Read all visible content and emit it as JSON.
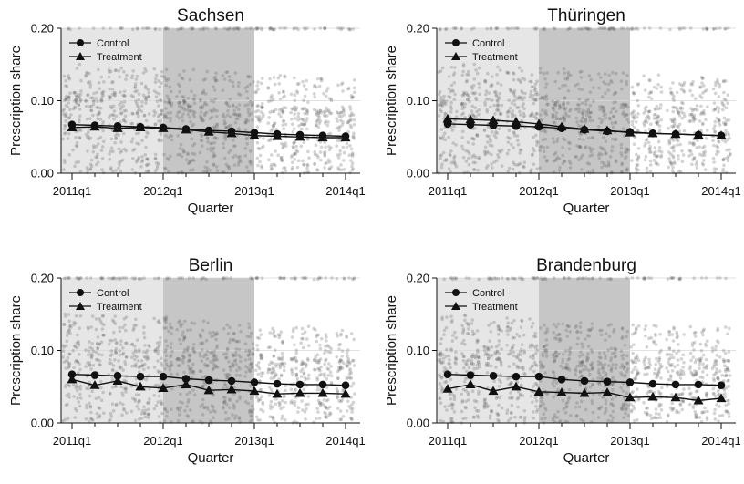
{
  "chart_data": [
    {
      "type": "line",
      "title": "Sachsen",
      "xlabel": "Quarter",
      "ylabel": "Prescription share",
      "x": [
        "2011q1",
        "2011q2",
        "2011q3",
        "2011q4",
        "2012q1",
        "2012q2",
        "2012q3",
        "2012q4",
        "2013q1",
        "2013q2",
        "2013q3",
        "2013q4",
        "2014q1"
      ],
      "xticks": [
        "2011q1",
        "2012q1",
        "2013q1",
        "2014q1"
      ],
      "ylim": [
        0,
        0.2
      ],
      "yticks": [
        "0.00",
        "0.10",
        "0.20"
      ],
      "shaded_periods": [
        {
          "from": "2011q1",
          "to": "2012q1",
          "shade": "light"
        },
        {
          "from": "2012q1",
          "to": "2013q1",
          "shade": "dark"
        }
      ],
      "legend_position": "top-left",
      "series": [
        {
          "name": "Control",
          "marker": "circle",
          "values": [
            0.067,
            0.066,
            0.065,
            0.064,
            0.063,
            0.061,
            0.059,
            0.058,
            0.056,
            0.054,
            0.053,
            0.052,
            0.051
          ]
        },
        {
          "name": "Treatment",
          "marker": "triangle",
          "values": [
            0.063,
            0.064,
            0.062,
            0.063,
            0.062,
            0.06,
            0.057,
            0.055,
            0.052,
            0.051,
            0.05,
            0.049,
            0.049
          ]
        }
      ]
    },
    {
      "type": "line",
      "title": "Thüringen",
      "xlabel": "Quarter",
      "ylabel": "Prescription share",
      "x": [
        "2011q1",
        "2011q2",
        "2011q3",
        "2011q4",
        "2012q1",
        "2012q2",
        "2012q3",
        "2012q4",
        "2013q1",
        "2013q2",
        "2013q3",
        "2013q4",
        "2014q1"
      ],
      "xticks": [
        "2011q1",
        "2012q1",
        "2013q1",
        "2014q1"
      ],
      "ylim": [
        0,
        0.2
      ],
      "yticks": [
        "0.00",
        "0.10",
        "0.20"
      ],
      "shaded_periods": [
        {
          "from": "2011q1",
          "to": "2012q1",
          "shade": "light"
        },
        {
          "from": "2012q1",
          "to": "2013q1",
          "shade": "dark"
        }
      ],
      "legend_position": "top-left",
      "series": [
        {
          "name": "Control",
          "marker": "circle",
          "values": [
            0.068,
            0.067,
            0.066,
            0.065,
            0.064,
            0.062,
            0.06,
            0.058,
            0.057,
            0.055,
            0.054,
            0.053,
            0.052
          ]
        },
        {
          "name": "Treatment",
          "marker": "triangle",
          "values": [
            0.075,
            0.074,
            0.073,
            0.071,
            0.068,
            0.064,
            0.061,
            0.059,
            0.056,
            0.055,
            0.054,
            0.053,
            0.052
          ]
        }
      ]
    },
    {
      "type": "line",
      "title": "Berlin",
      "xlabel": "Quarter",
      "ylabel": "Prescription share",
      "x": [
        "2011q1",
        "2011q2",
        "2011q3",
        "2011q4",
        "2012q1",
        "2012q2",
        "2012q3",
        "2012q4",
        "2013q1",
        "2013q2",
        "2013q3",
        "2013q4",
        "2014q1"
      ],
      "xticks": [
        "2011q1",
        "2012q1",
        "2013q1",
        "2014q1"
      ],
      "ylim": [
        0,
        0.2
      ],
      "yticks": [
        "0.00",
        "0.10",
        "0.20"
      ],
      "shaded_periods": [
        {
          "from": "2011q1",
          "to": "2012q1",
          "shade": "light"
        },
        {
          "from": "2012q1",
          "to": "2013q1",
          "shade": "dark"
        }
      ],
      "legend_position": "top-left",
      "series": [
        {
          "name": "Control",
          "marker": "circle",
          "values": [
            0.067,
            0.066,
            0.065,
            0.064,
            0.064,
            0.061,
            0.059,
            0.058,
            0.056,
            0.054,
            0.053,
            0.053,
            0.052
          ]
        },
        {
          "name": "Treatment",
          "marker": "triangle",
          "values": [
            0.06,
            0.052,
            0.058,
            0.05,
            0.048,
            0.053,
            0.045,
            0.046,
            0.044,
            0.04,
            0.041,
            0.041,
            0.04
          ]
        }
      ]
    },
    {
      "type": "line",
      "title": "Brandenburg",
      "xlabel": "Quarter",
      "ylabel": "Prescription share",
      "x": [
        "2011q1",
        "2011q2",
        "2011q3",
        "2011q4",
        "2012q1",
        "2012q2",
        "2012q3",
        "2012q4",
        "2013q1",
        "2013q2",
        "2013q3",
        "2013q4",
        "2014q1"
      ],
      "xticks": [
        "2011q1",
        "2012q1",
        "2013q1",
        "2014q1"
      ],
      "ylim": [
        0,
        0.2
      ],
      "yticks": [
        "0.00",
        "0.10",
        "0.20"
      ],
      "shaded_periods": [
        {
          "from": "2011q1",
          "to": "2012q1",
          "shade": "light"
        },
        {
          "from": "2012q1",
          "to": "2013q1",
          "shade": "dark"
        }
      ],
      "legend_position": "top-left",
      "series": [
        {
          "name": "Control",
          "marker": "circle",
          "values": [
            0.067,
            0.066,
            0.065,
            0.064,
            0.064,
            0.06,
            0.058,
            0.057,
            0.056,
            0.054,
            0.053,
            0.053,
            0.052
          ]
        },
        {
          "name": "Treatment",
          "marker": "triangle",
          "values": [
            0.047,
            0.053,
            0.044,
            0.05,
            0.043,
            0.042,
            0.041,
            0.042,
            0.035,
            0.036,
            0.035,
            0.031,
            0.034
          ]
        }
      ]
    }
  ],
  "colors": {
    "shade_light": "#e6e6e6",
    "shade_dark": "#c6c6c6",
    "line": "#111111",
    "scatter": "#666666",
    "grid": "#d9d9d9"
  }
}
